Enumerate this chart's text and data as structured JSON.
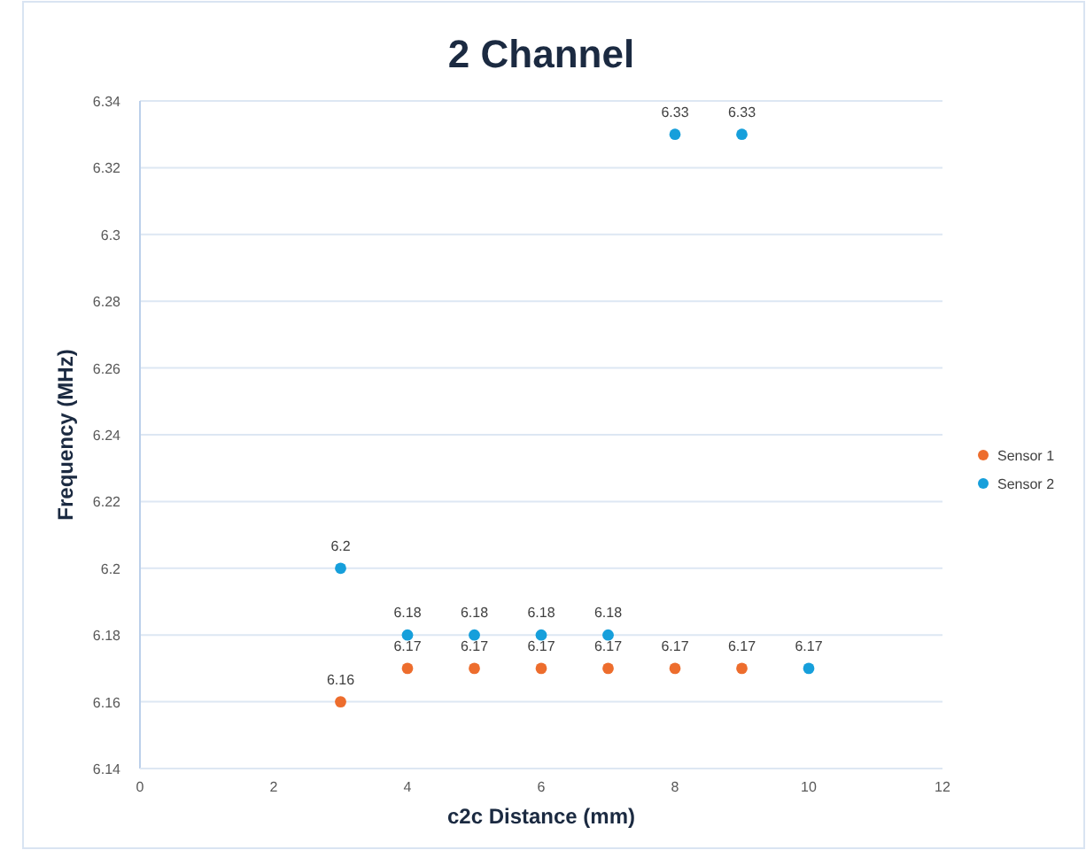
{
  "chart_data": {
    "type": "scatter",
    "title": "2 Channel",
    "xlabel": "c2c Distance (mm)",
    "ylabel": "Frequency (MHz)",
    "xlim": [
      0,
      12
    ],
    "xticks": [
      0,
      2,
      4,
      6,
      8,
      10,
      12
    ],
    "ylim": [
      6.14,
      6.34
    ],
    "yticks": [
      6.14,
      6.16,
      6.18,
      6.2,
      6.22,
      6.24,
      6.26,
      6.28,
      6.3,
      6.32,
      6.34
    ],
    "grid": "y",
    "legend": "right",
    "marker": "circle",
    "data_labels": true,
    "series": [
      {
        "name": "Sensor 1",
        "color": "#ed6d2d",
        "x": [
          3,
          4,
          5,
          6,
          7,
          8,
          9
        ],
        "values": [
          6.16,
          6.17,
          6.17,
          6.17,
          6.17,
          6.17,
          6.17
        ]
      },
      {
        "name": "Sensor 2",
        "color": "#169fdb",
        "x": [
          3,
          4,
          5,
          6,
          7,
          8,
          9,
          10
        ],
        "values": [
          6.2,
          6.18,
          6.18,
          6.18,
          6.18,
          6.33,
          6.33,
          6.17
        ]
      }
    ]
  }
}
